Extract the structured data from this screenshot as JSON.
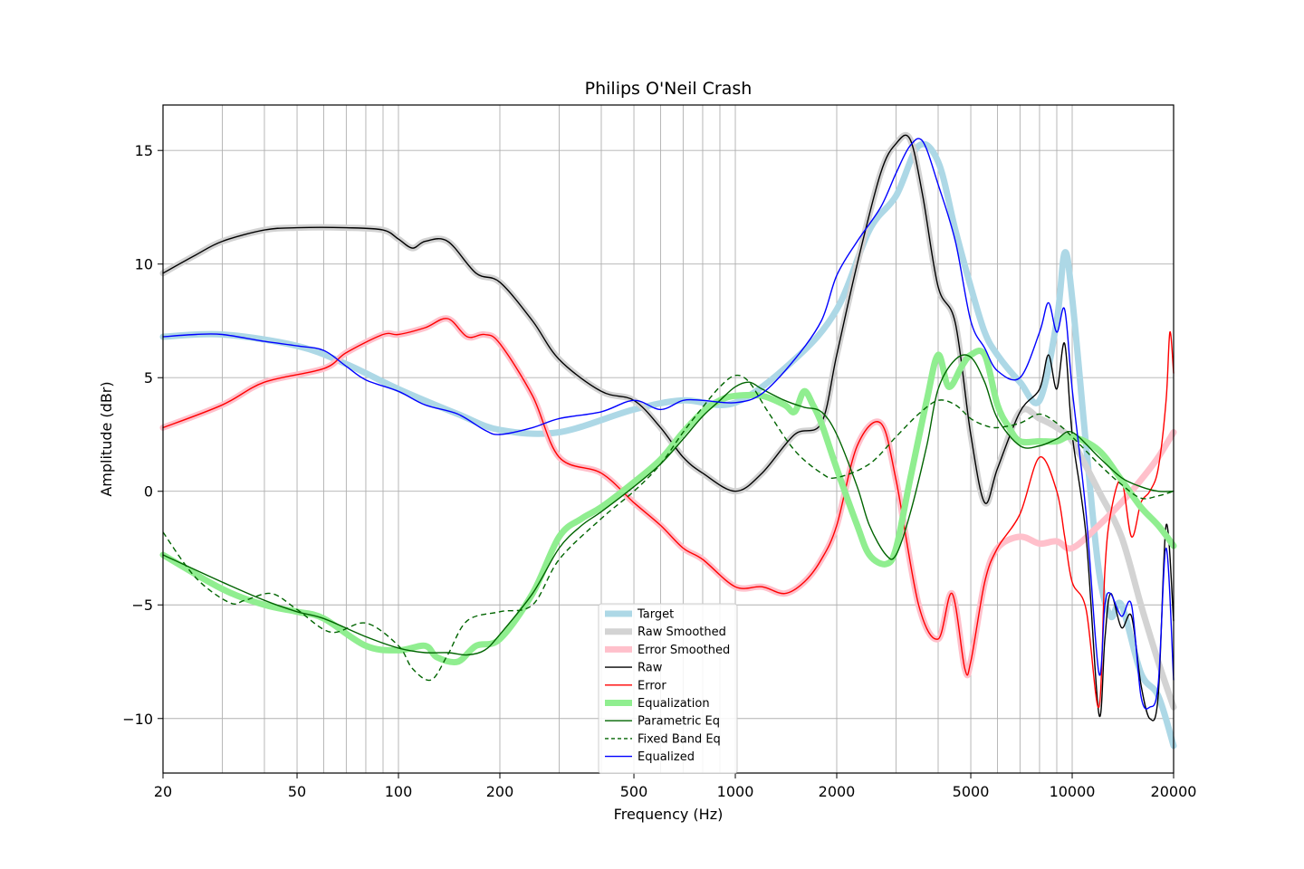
{
  "chart_data": {
    "type": "line",
    "title": "Philips O'Neil Crash",
    "xlabel": "Frequency (Hz)",
    "ylabel": "Amplitude (dBr)",
    "xscale": "log",
    "xlim": [
      20,
      20000
    ],
    "ylim": [
      -12.4,
      17
    ],
    "xticks": [
      20,
      50,
      100,
      200,
      500,
      1000,
      2000,
      5000,
      10000,
      20000
    ],
    "xtick_labels": [
      "20",
      "50",
      "100",
      "200",
      "500",
      "1000",
      "2000",
      "5000",
      "10000",
      "20000"
    ],
    "yticks": [
      -10,
      -5,
      0,
      5,
      10,
      15
    ],
    "ytick_labels": [
      "−10",
      "−5",
      "0",
      "5",
      "10",
      "15"
    ],
    "grid": true,
    "legend_position": "lower-center",
    "series": [
      {
        "name": "Target",
        "color": "#add8e6",
        "width": 7,
        "dash": "",
        "x": [
          20,
          30,
          50,
          70,
          100,
          150,
          200,
          300,
          500,
          700,
          1000,
          1500,
          2000,
          2500,
          3000,
          3500,
          4000,
          4500,
          5000,
          5500,
          6000,
          7000,
          8000,
          9000,
          9500,
          10000,
          11000,
          12000,
          13000,
          14000,
          16000,
          18000,
          20000
        ],
        "y": [
          6.8,
          6.9,
          6.4,
          5.6,
          4.5,
          3.4,
          2.7,
          2.6,
          3.6,
          4.0,
          3.9,
          5.8,
          8.0,
          11.5,
          13.0,
          15.2,
          14.5,
          11.5,
          9.0,
          7.0,
          6.0,
          4.8,
          4.0,
          7.5,
          10.5,
          8.5,
          2.0,
          -3.5,
          -5.5,
          -5.0,
          -8.0,
          -9.0,
          -11.2
        ]
      },
      {
        "name": "Raw Smoothed",
        "color": "#d3d3d3",
        "width": 7,
        "dash": "",
        "x": [
          20,
          25,
          30,
          40,
          50,
          70,
          90,
          100,
          110,
          120,
          140,
          170,
          200,
          250,
          300,
          400,
          500,
          600,
          700,
          800,
          1000,
          1200,
          1500,
          1800,
          2000,
          2300,
          2700,
          3000,
          3300,
          3600,
          4000,
          4500,
          5000,
          5500,
          6000,
          7000,
          8000,
          9000,
          10000,
          12000,
          14000,
          16000,
          18000,
          20000
        ],
        "y": [
          9.6,
          10.4,
          11.0,
          11.5,
          11.6,
          11.6,
          11.5,
          11.1,
          10.7,
          11.0,
          11.0,
          9.6,
          9.2,
          7.5,
          5.8,
          4.4,
          4.0,
          2.8,
          1.5,
          0.8,
          0.0,
          0.8,
          2.5,
          3.0,
          6.0,
          10.0,
          14.0,
          15.3,
          15.5,
          13.0,
          9.0,
          7.4,
          2.5,
          -0.5,
          1.0,
          3.5,
          3.2,
          2.8,
          2.2,
          0.0,
          -2.0,
          -5.0,
          -7.5,
          -9.5
        ]
      },
      {
        "name": "Error Smoothed",
        "color": "#ffc0cb",
        "width": 7,
        "dash": "",
        "x": [
          20,
          30,
          40,
          60,
          70,
          90,
          100,
          120,
          140,
          160,
          180,
          200,
          250,
          300,
          400,
          500,
          600,
          700,
          800,
          1000,
          1200,
          1400,
          1600,
          1800,
          2000,
          2300,
          2700,
          3000,
          3500,
          4000,
          4400,
          4800,
          5000,
          5500,
          6000,
          7000,
          8000,
          9000,
          10000,
          12000,
          14000,
          16000,
          18000,
          20000
        ],
        "y": [
          2.8,
          3.8,
          4.8,
          5.4,
          6.1,
          6.9,
          6.9,
          7.2,
          7.6,
          6.8,
          6.9,
          6.5,
          4.2,
          1.5,
          0.8,
          -0.5,
          -1.5,
          -2.5,
          -3.0,
          -4.2,
          -4.2,
          -4.5,
          -4.0,
          -3.0,
          -1.5,
          2.0,
          3.0,
          0.5,
          -5.0,
          -6.5,
          -4.5,
          -7.8,
          -7.5,
          -4.0,
          -2.5,
          -2.0,
          -2.3,
          -2.2,
          -2.5,
          -1.5,
          -0.5,
          0.5,
          1.5,
          2.6
        ]
      },
      {
        "name": "Raw",
        "color": "#000000",
        "width": 1.4,
        "dash": "",
        "x": [
          20,
          25,
          30,
          40,
          50,
          70,
          90,
          100,
          110,
          120,
          140,
          170,
          200,
          250,
          300,
          400,
          500,
          600,
          700,
          800,
          1000,
          1200,
          1500,
          1800,
          2000,
          2300,
          2700,
          3000,
          3300,
          3600,
          4000,
          4500,
          5000,
          5500,
          6000,
          7000,
          8000,
          8500,
          9000,
          9500,
          10000,
          11000,
          12000,
          12500,
          13000,
          14000,
          15000,
          16000,
          17000,
          18000,
          19000,
          20000
        ],
        "y": [
          9.6,
          10.4,
          11.0,
          11.5,
          11.6,
          11.6,
          11.5,
          11.1,
          10.7,
          11.0,
          11.0,
          9.6,
          9.2,
          7.5,
          5.8,
          4.4,
          4.0,
          2.8,
          1.5,
          0.8,
          0.0,
          0.8,
          2.5,
          3.0,
          6.0,
          10.0,
          14.0,
          15.3,
          15.5,
          13.0,
          9.0,
          7.4,
          2.5,
          -0.5,
          1.0,
          3.5,
          4.5,
          6.0,
          4.5,
          6.5,
          2.5,
          -2.0,
          -9.8,
          -6.5,
          -4.5,
          -6.0,
          -5.5,
          -8.5,
          -10.0,
          -9.0,
          -1.5,
          -5.7
        ]
      },
      {
        "name": "Error",
        "color": "#ff0000",
        "width": 1.4,
        "dash": "",
        "x": [
          20,
          30,
          40,
          60,
          70,
          90,
          100,
          120,
          140,
          160,
          180,
          200,
          250,
          300,
          400,
          500,
          600,
          700,
          800,
          1000,
          1200,
          1400,
          1600,
          1800,
          2000,
          2300,
          2700,
          3000,
          3500,
          4000,
          4400,
          4800,
          5000,
          5500,
          6000,
          7000,
          8000,
          9000,
          9500,
          10000,
          11000,
          12000,
          12500,
          13000,
          14000,
          15000,
          16000,
          17000,
          18000,
          19000,
          19500,
          20000
        ],
        "y": [
          2.8,
          3.8,
          4.8,
          5.4,
          6.1,
          6.9,
          6.9,
          7.2,
          7.6,
          6.8,
          6.9,
          6.5,
          4.2,
          1.5,
          0.8,
          -0.5,
          -1.5,
          -2.5,
          -3.0,
          -4.2,
          -4.2,
          -4.5,
          -4.0,
          -3.0,
          -1.5,
          2.0,
          3.0,
          0.5,
          -5.0,
          -6.5,
          -4.5,
          -7.8,
          -7.5,
          -4.0,
          -2.5,
          -1.0,
          1.5,
          0.0,
          -2.0,
          -4.0,
          -5.2,
          -9.5,
          -3.5,
          -1.0,
          0.5,
          -2.0,
          -0.5,
          0.0,
          1.0,
          4.0,
          7.0,
          5.2
        ]
      },
      {
        "name": "Equalization",
        "color": "#90ee90",
        "width": 7,
        "dash": "",
        "x": [
          20,
          30,
          40,
          50,
          60,
          80,
          100,
          120,
          130,
          150,
          170,
          200,
          250,
          300,
          350,
          400,
          500,
          600,
          700,
          800,
          900,
          1000,
          1200,
          1400,
          1500,
          1600,
          1700,
          1800,
          2000,
          2300,
          2500,
          2800,
          3000,
          3300,
          3700,
          4000,
          4300,
          4700,
          5000,
          5500,
          6000,
          6500,
          7000,
          8000,
          9000,
          10000,
          12000,
          14000,
          16000,
          18000,
          20000
        ],
        "y": [
          -2.8,
          -4.3,
          -5.0,
          -5.3,
          -5.6,
          -6.8,
          -7.0,
          -6.8,
          -7.3,
          -7.5,
          -6.8,
          -6.5,
          -4.5,
          -2.0,
          -1.2,
          -0.7,
          0.4,
          1.4,
          2.6,
          3.5,
          4.0,
          4.2,
          4.2,
          3.8,
          3.5,
          4.4,
          3.8,
          3.0,
          1.0,
          -1.5,
          -2.8,
          -3.2,
          -2.5,
          0.5,
          4.0,
          6.0,
          4.6,
          5.5,
          6.0,
          6.0,
          3.8,
          2.8,
          2.2,
          2.2,
          2.2,
          2.4,
          1.8,
          0.5,
          -0.7,
          -1.5,
          -2.4
        ]
      },
      {
        "name": "Parametric Eq",
        "color": "#006400",
        "width": 1.4,
        "dash": "",
        "x": [
          20,
          30,
          40,
          50,
          60,
          80,
          100,
          120,
          140,
          160,
          180,
          200,
          250,
          300,
          350,
          400,
          500,
          600,
          700,
          800,
          900,
          1000,
          1100,
          1200,
          1400,
          1600,
          1800,
          2000,
          2300,
          2500,
          2800,
          3000,
          3300,
          3700,
          4000,
          4500,
          5000,
          5500,
          6000,
          7000,
          8000,
          9000,
          10000,
          12000,
          14000,
          16000,
          18000,
          20000
        ],
        "y": [
          -2.8,
          -4.0,
          -4.8,
          -5.3,
          -5.6,
          -6.4,
          -6.9,
          -7.1,
          -7.1,
          -7.2,
          -7.0,
          -6.3,
          -4.5,
          -2.5,
          -1.5,
          -0.9,
          0.2,
          1.2,
          2.3,
          3.3,
          4.0,
          4.6,
          4.8,
          4.5,
          4.0,
          3.7,
          3.5,
          2.5,
          0.2,
          -1.5,
          -2.8,
          -2.8,
          -1.0,
          2.0,
          4.5,
          5.8,
          5.9,
          4.8,
          3.2,
          2.0,
          2.0,
          2.3,
          2.6,
          1.5,
          0.6,
          0.2,
          0.0,
          0.0
        ]
      },
      {
        "name": "Fixed Band Eq",
        "color": "#006400",
        "width": 1.4,
        "dash": "6,4",
        "x": [
          20,
          25,
          31.5,
          35,
          42,
          50,
          63,
          80,
          100,
          110,
          125,
          140,
          160,
          200,
          250,
          300,
          400,
          500,
          600,
          700,
          800,
          900,
          1000,
          1100,
          1250,
          1500,
          1800,
          2000,
          2500,
          3000,
          3500,
          4000,
          4500,
          5000,
          5500,
          6000,
          7000,
          8000,
          9000,
          10000,
          12000,
          14000,
          16000,
          18000,
          20000
        ],
        "y": [
          -1.8,
          -3.8,
          -4.9,
          -4.8,
          -4.5,
          -5.2,
          -6.2,
          -5.8,
          -6.8,
          -7.8,
          -8.3,
          -7.2,
          -5.7,
          -5.3,
          -5.0,
          -3.0,
          -1.2,
          0.0,
          1.2,
          2.6,
          3.7,
          4.6,
          5.1,
          4.8,
          3.5,
          1.8,
          0.8,
          0.6,
          1.2,
          2.4,
          3.4,
          4.0,
          3.8,
          3.2,
          2.9,
          2.8,
          3.0,
          3.4,
          3.0,
          2.4,
          1.2,
          0.3,
          -0.3,
          -0.2,
          0.0
        ]
      },
      {
        "name": "Equalized",
        "color": "#0000ff",
        "width": 1.4,
        "dash": "",
        "x": [
          20,
          25,
          30,
          40,
          50,
          60,
          70,
          80,
          100,
          120,
          150,
          180,
          200,
          250,
          300,
          400,
          500,
          600,
          700,
          800,
          1000,
          1200,
          1500,
          1800,
          2000,
          2300,
          2700,
          3000,
          3300,
          3600,
          4000,
          4500,
          5000,
          5500,
          6000,
          7000,
          8000,
          8500,
          9000,
          9500,
          10000,
          11000,
          12000,
          12500,
          13000,
          14000,
          15000,
          16000,
          17000,
          18000,
          19000,
          20000
        ],
        "y": [
          6.8,
          6.9,
          6.9,
          6.6,
          6.4,
          6.2,
          5.5,
          4.9,
          4.4,
          3.8,
          3.4,
          2.7,
          2.5,
          2.8,
          3.2,
          3.5,
          4.0,
          3.6,
          4.0,
          4.0,
          3.9,
          4.3,
          5.8,
          7.5,
          9.5,
          11.0,
          12.5,
          14.0,
          15.2,
          15.4,
          13.5,
          11.0,
          7.5,
          6.3,
          5.3,
          5.0,
          7.0,
          8.3,
          7.0,
          8.0,
          4.5,
          -1.0,
          -8.0,
          -5.0,
          -4.5,
          -5.5,
          -5.0,
          -9.0,
          -9.5,
          -8.5,
          -2.5,
          -8.3
        ]
      }
    ]
  }
}
